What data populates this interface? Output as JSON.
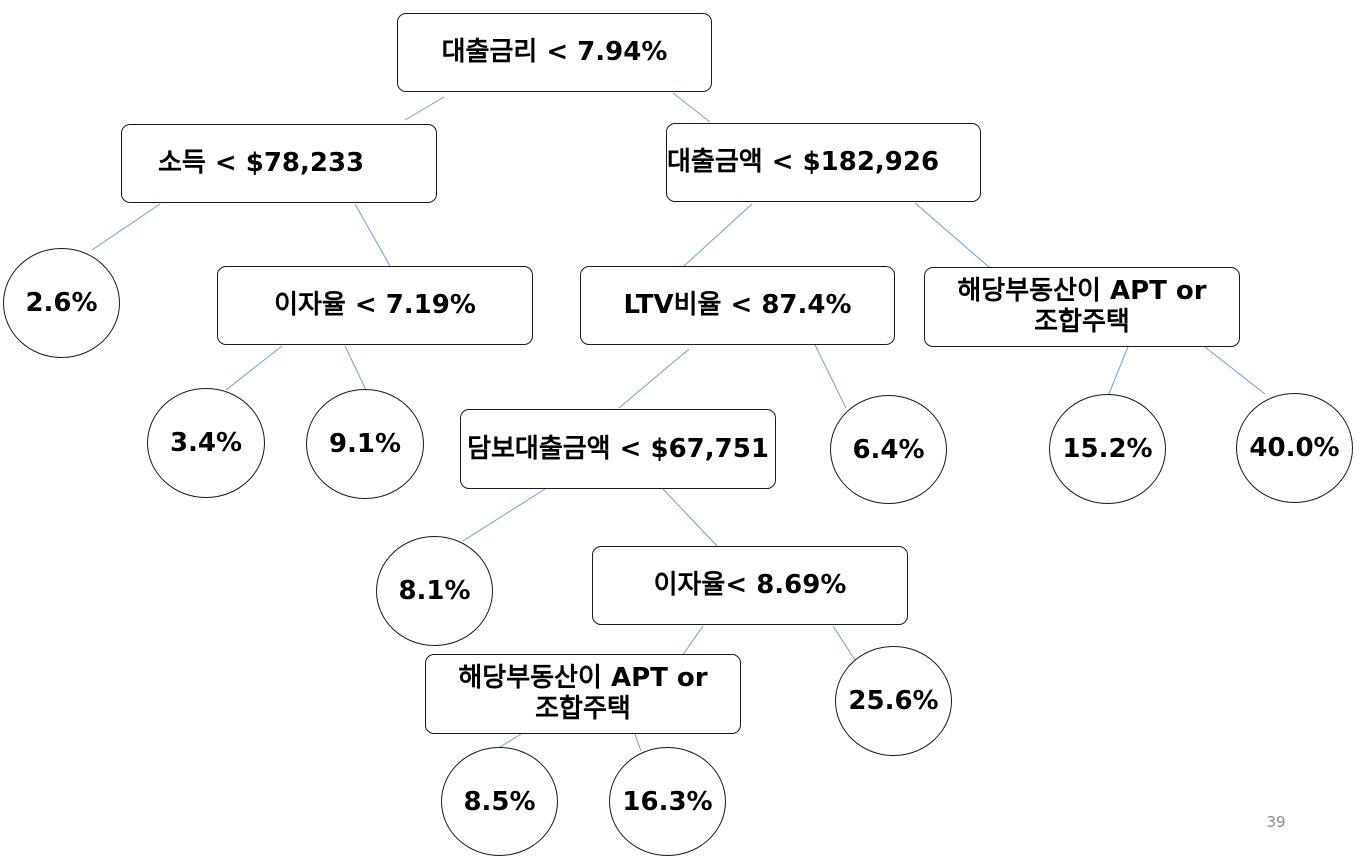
{
  "tree": {
    "root": {
      "label": "대출금리 < 7.94%",
      "left": {
        "label": "소득 < $78,233",
        "left": {
          "leaf": "2.6%"
        },
        "right": {
          "label": "이자율 < 7.19%",
          "left": {
            "leaf": "3.4%"
          },
          "right": {
            "leaf": "9.1%"
          }
        }
      },
      "right": {
        "label": "대출금액 < $182,926",
        "left": {
          "label": "LTV비율 < 87.4%",
          "left": {
            "label": "담보대출금액 < $67,751",
            "left": {
              "leaf": "8.1%"
            },
            "right": {
              "label": "이자율< 8.69%",
              "left": {
                "label": "해당부동산이 APT or\n조합주택",
                "left": {
                  "leaf": "8.5%"
                },
                "right": {
                  "leaf": "16.3%"
                }
              },
              "right": {
                "leaf": "25.6%"
              }
            }
          },
          "right": {
            "leaf": "6.4%"
          }
        },
        "right": {
          "label": "해당부동산이 APT or\n조합주택",
          "left": {
            "leaf": "15.2%"
          },
          "right": {
            "leaf": "40.0%"
          }
        }
      }
    }
  },
  "edge_color": "#6f9fd8",
  "page_number": "39"
}
